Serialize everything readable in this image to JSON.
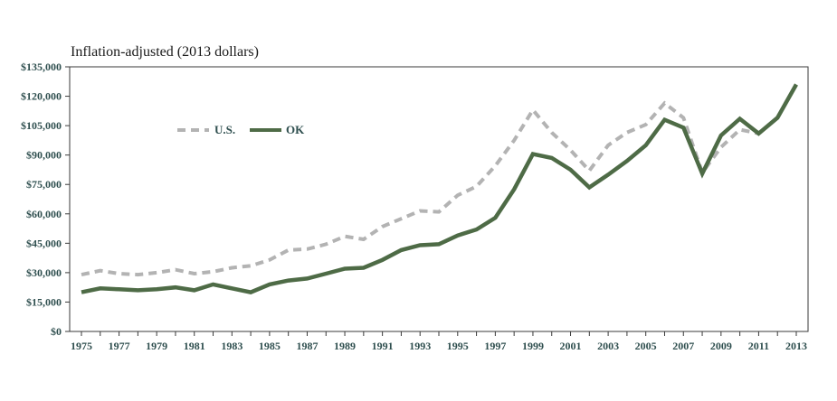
{
  "chart_data": {
    "type": "line",
    "title": "",
    "subtitle": "Inflation-adjusted (2013 dollars)",
    "xlabel": "",
    "ylabel": "",
    "xlim": [
      1975,
      2013
    ],
    "ylim": [
      0,
      135000
    ],
    "y_ticks": [
      0,
      15000,
      30000,
      45000,
      60000,
      75000,
      90000,
      105000,
      120000,
      135000
    ],
    "y_tick_labels": [
      "$0",
      "$15,000",
      "$30,000",
      "$45,000",
      "$60,000",
      "$75,000",
      "$90,000",
      "$105,000",
      "$120,000",
      "$135,000"
    ],
    "x_tick_labels": [
      "1975",
      "1977",
      "1979",
      "1981",
      "1983",
      "1985",
      "1987",
      "1989",
      "1991",
      "1993",
      "1995",
      "1997",
      "1999",
      "2001",
      "2003",
      "2005",
      "2007",
      "2009",
      "2011",
      "2013"
    ],
    "grid": false,
    "legend": "upper-left-inside",
    "x": [
      1975,
      1976,
      1977,
      1978,
      1979,
      1980,
      1981,
      1982,
      1983,
      1984,
      1985,
      1986,
      1987,
      1988,
      1989,
      1990,
      1991,
      1992,
      1993,
      1994,
      1995,
      1996,
      1997,
      1998,
      1999,
      2000,
      2001,
      2002,
      2003,
      2004,
      2005,
      2006,
      2007,
      2008,
      2009,
      2010,
      2011,
      2012,
      2013
    ],
    "series": [
      {
        "name": "U.S.",
        "color": "#b3b3b3",
        "style": "dashed",
        "values": [
          29000,
          31000,
          29500,
          29000,
          30000,
          31500,
          29500,
          30500,
          32500,
          33500,
          36500,
          41500,
          42000,
          44500,
          48500,
          47000,
          53500,
          57500,
          61500,
          61000,
          69500,
          74000,
          84500,
          97500,
          113000,
          101500,
          92500,
          82000,
          95000,
          101500,
          105500,
          116500,
          109000,
          81000,
          94000,
          103000,
          101000,
          109000,
          126000
        ]
      },
      {
        "name": "OK",
        "color": "#4e6b46",
        "style": "solid",
        "values": [
          20000,
          22000,
          21500,
          21000,
          21500,
          22500,
          21000,
          24000,
          22000,
          20000,
          24000,
          26000,
          27000,
          29500,
          32000,
          32500,
          36500,
          41500,
          44000,
          44500,
          49000,
          52000,
          58000,
          72500,
          90500,
          88500,
          82500,
          73500,
          80000,
          87000,
          95000,
          108000,
          104000,
          80500,
          100000,
          108500,
          101000,
          109000,
          126000
        ]
      }
    ]
  }
}
